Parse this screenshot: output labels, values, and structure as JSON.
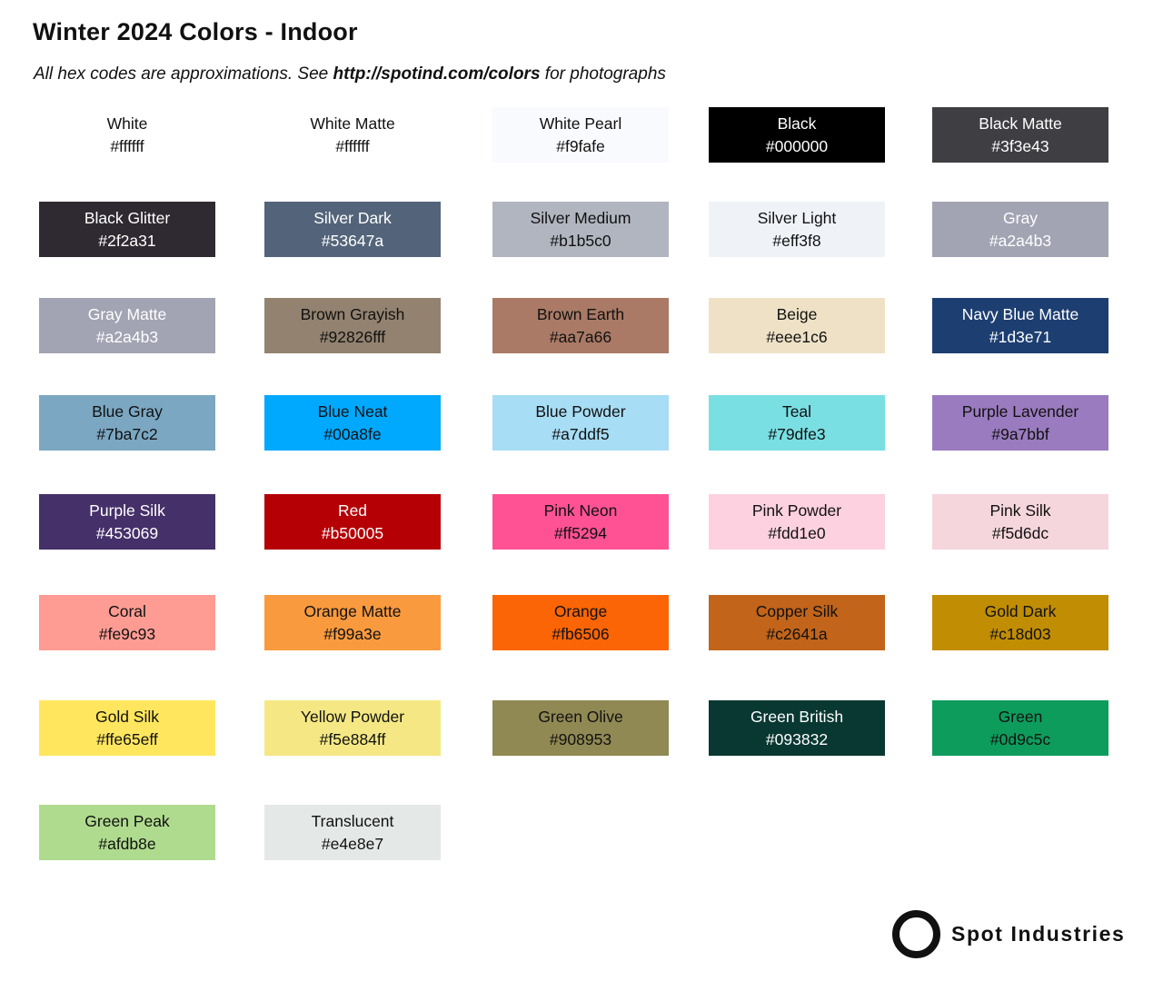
{
  "header": {
    "title": "Winter 2024 Colors - Indoor",
    "subtitle": {
      "prefix": "All hex codes are approximations. See ",
      "link": "http://spotind.com/colors",
      "suffix": " for photographs"
    }
  },
  "brand": {
    "name": "Spot Industries",
    "icon": "ring-circle-icon",
    "color": "#111111"
  },
  "colors": {
    "light_text": "#ffffff",
    "dark_text": "#111111",
    "page_background": "#ffffff"
  },
  "swatch_rows": [
    [
      {
        "name": "White",
        "hex": "#ffffff",
        "bg": "#ffffff",
        "text": "dark"
      },
      {
        "name": "White Matte",
        "hex": "#ffffff",
        "bg": "#ffffff",
        "text": "dark"
      },
      {
        "name": "White Pearl",
        "hex": "#f9fafe",
        "bg": "#f9fafe",
        "text": "dark"
      },
      {
        "name": "Black",
        "hex": "#000000",
        "bg": "#000000",
        "text": "light"
      },
      {
        "name": "Black Matte",
        "hex": "#3f3e43",
        "bg": "#3f3e43",
        "text": "light"
      }
    ],
    [
      {
        "name": "Black Glitter",
        "hex": "#2f2a31",
        "bg": "#2f2a31",
        "text": "light",
        "texture": "glitter"
      },
      {
        "name": "Silver Dark",
        "hex": "#53647a",
        "bg": "#53647a",
        "text": "light"
      },
      {
        "name": "Silver Medium",
        "hex": "#b1b5c0",
        "bg": "#b1b5c0",
        "text": "dark"
      },
      {
        "name": "Silver Light",
        "hex": "#eff3f8",
        "bg": "#eff3f8",
        "text": "dark"
      },
      {
        "name": "Gray",
        "hex": "#a2a4b3",
        "bg": "#a2a4b3",
        "text": "light"
      }
    ],
    [
      {
        "name": "Gray Matte",
        "hex": "#a2a4b3",
        "bg": "#a2a4b3",
        "text": "light"
      },
      {
        "name": "Brown Grayish",
        "hex": "#92826fff",
        "bg": "#92826f",
        "text": "dark"
      },
      {
        "name": "Brown Earth",
        "hex": "#aa7a66",
        "bg": "#aa7a66",
        "text": "dark"
      },
      {
        "name": "Beige",
        "hex": "#eee1c6",
        "bg": "#eee1c6",
        "text": "dark"
      },
      {
        "name": "Navy Blue Matte",
        "hex": "#1d3e71",
        "bg": "#1d3e71",
        "text": "light"
      }
    ],
    [
      {
        "name": "Blue Gray",
        "hex": "#7ba7c2",
        "bg": "#7ba7c2",
        "text": "dark"
      },
      {
        "name": "Blue Neat",
        "hex": "#00a8fe",
        "bg": "#00a8fe",
        "text": "dark"
      },
      {
        "name": "Blue Powder",
        "hex": "#a7ddf5",
        "bg": "#a7ddf5",
        "text": "dark"
      },
      {
        "name": "Teal",
        "hex": "#79dfe3",
        "bg": "#79dfe3",
        "text": "dark"
      },
      {
        "name": "Purple Lavender",
        "hex": "#9a7bbf",
        "bg": "#9a7bbf",
        "text": "dark"
      }
    ],
    [
      {
        "name": "Purple Silk",
        "hex": "#453069",
        "bg": "#453069",
        "text": "light"
      },
      {
        "name": "Red",
        "hex": "#b50005",
        "bg": "#b50005",
        "text": "light"
      },
      {
        "name": "Pink Neon",
        "hex": "#ff5294",
        "bg": "#ff5294",
        "text": "dark"
      },
      {
        "name": "Pink Powder",
        "hex": "#fdd1e0",
        "bg": "#fdd1e0",
        "text": "dark"
      },
      {
        "name": "Pink Silk",
        "hex": "#f5d6dc",
        "bg": "#f5d6dc",
        "text": "dark"
      }
    ],
    [
      {
        "name": "Coral",
        "hex": "#fe9c93",
        "bg": "#fe9c93",
        "text": "dark"
      },
      {
        "name": "Orange Matte",
        "hex": "#f99a3e",
        "bg": "#f99a3e",
        "text": "dark"
      },
      {
        "name": "Orange",
        "hex": "#fb6506",
        "bg": "#fb6506",
        "text": "dark"
      },
      {
        "name": "Copper Silk",
        "hex": "#c2641a",
        "bg": "#c2641a",
        "text": "dark"
      },
      {
        "name": "Gold Dark",
        "hex": "#c18d03",
        "bg": "#c18d03",
        "text": "dark"
      }
    ],
    [
      {
        "name": "Gold Silk",
        "hex": "#ffe65eff",
        "bg": "#ffe65e",
        "text": "dark"
      },
      {
        "name": "Yellow Powder",
        "hex": "#f5e884ff",
        "bg": "#f5e884",
        "text": "dark"
      },
      {
        "name": "Green Olive",
        "hex": "#908953",
        "bg": "#908953",
        "text": "dark"
      },
      {
        "name": "Green British",
        "hex": "#093832",
        "bg": "#093832",
        "text": "light"
      },
      {
        "name": "Green",
        "hex": "#0d9c5c",
        "bg": "#0d9c5c",
        "text": "dark"
      }
    ],
    [
      {
        "name": "Green Peak",
        "hex": "#afdb8e",
        "bg": "#afdb8e",
        "text": "dark"
      },
      {
        "name": "Translucent",
        "hex": "#e4e8e7",
        "bg": "#e4e8e7",
        "text": "dark"
      }
    ]
  ]
}
